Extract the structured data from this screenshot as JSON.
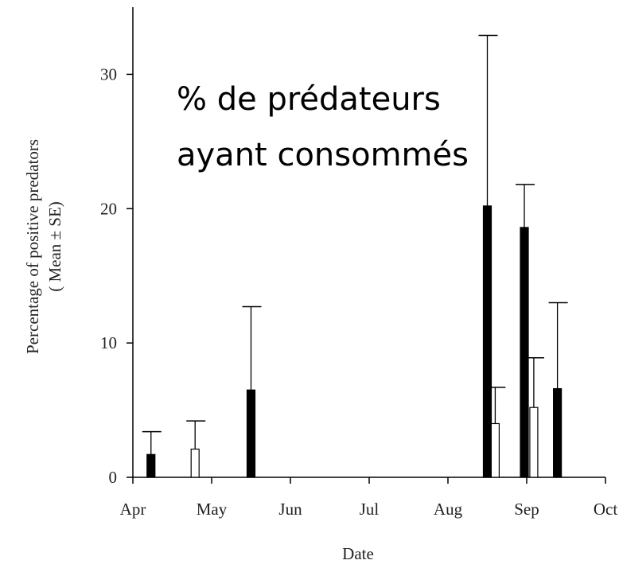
{
  "chart_data": {
    "type": "bar",
    "ylabel": [
      "Percentage of positive predators",
      "( Mean ± SE)"
    ],
    "xlabel": "Date",
    "annotation": [
      "% de prédateurs",
      "ayant consommés"
    ],
    "xlim": [
      0,
      6
    ],
    "xticks": [
      {
        "value": 0,
        "label": "Apr"
      },
      {
        "value": 1,
        "label": "May"
      },
      {
        "value": 2,
        "label": "Jun"
      },
      {
        "value": 3,
        "label": "Jul"
      },
      {
        "value": 4,
        "label": "Aug"
      },
      {
        "value": 5,
        "label": "Sep"
      },
      {
        "value": 6,
        "label": "Oct"
      }
    ],
    "ylim": [
      0,
      35
    ],
    "yticks": [
      0,
      10,
      20,
      30
    ],
    "series": [
      {
        "color": "#000000",
        "x": [
          0.23,
          1.5,
          4.5,
          4.97,
          5.39
        ],
        "values": [
          1.7,
          6.5,
          20.2,
          18.6,
          6.6
        ],
        "errors": [
          1.7,
          6.2,
          12.7,
          3.2,
          6.4
        ]
      },
      {
        "color": "#ffffff",
        "x": [
          0.79,
          4.6,
          5.09
        ],
        "values": [
          2.1,
          4.0,
          5.2
        ],
        "errors": [
          2.1,
          2.7,
          3.7
        ]
      }
    ]
  }
}
